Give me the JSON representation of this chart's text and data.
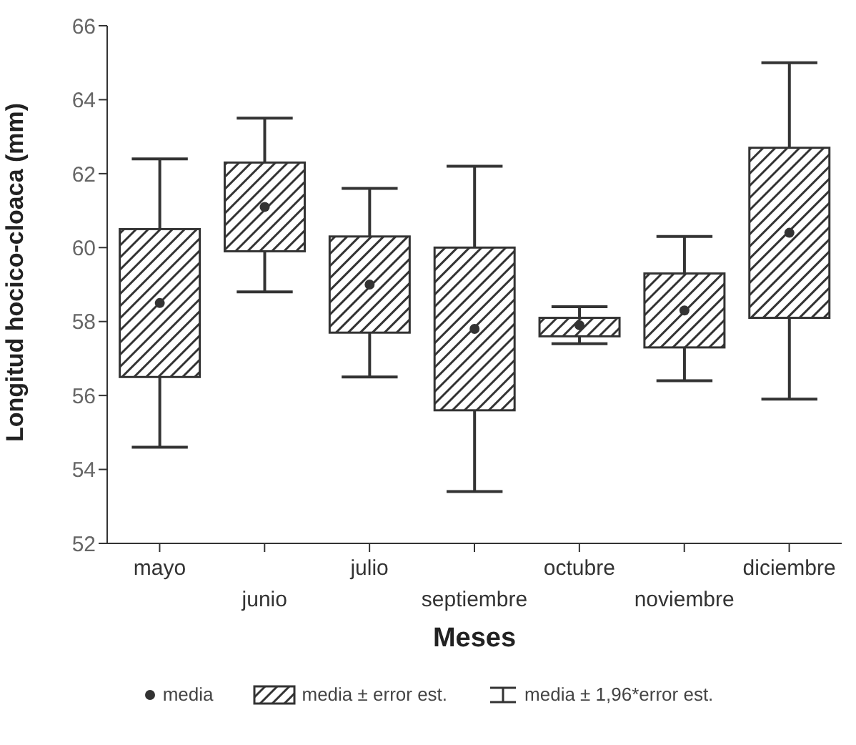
{
  "chart_data": {
    "type": "box",
    "xlabel": "Meses",
    "ylabel": "Longitud hocico-cloaca (mm)",
    "categories": [
      "mayo",
      "junio",
      "julio",
      "septiembre",
      "octubre",
      "noviembre",
      "diciembre"
    ],
    "color": "#333333",
    "boxes": [
      {
        "low": 54.6,
        "q1": 56.5,
        "q3": 60.5,
        "high": 62.4,
        "mean": 58.5
      },
      {
        "low": 58.8,
        "q1": 59.9,
        "q3": 62.3,
        "high": 63.5,
        "mean": 61.1
      },
      {
        "low": 56.5,
        "q1": 57.7,
        "q3": 60.3,
        "high": 61.6,
        "mean": 59.0
      },
      {
        "low": 53.4,
        "q1": 55.6,
        "q3": 60.0,
        "high": 62.2,
        "mean": 57.8
      },
      {
        "low": 57.4,
        "q1": 57.6,
        "q3": 58.1,
        "high": 58.4,
        "mean": 57.9
      },
      {
        "low": 56.4,
        "q1": 57.3,
        "q3": 59.3,
        "high": 60.3,
        "mean": 58.3
      },
      {
        "low": 55.9,
        "q1": 58.1,
        "q3": 62.7,
        "high": 65.0,
        "mean": 60.4
      }
    ],
    "ylim": [
      52,
      66
    ],
    "yticks": [
      52,
      54,
      56,
      58,
      60,
      62,
      64,
      66
    ],
    "annotations": [
      "media",
      "media ± error est.",
      "media ± 1,96*error est."
    ]
  }
}
